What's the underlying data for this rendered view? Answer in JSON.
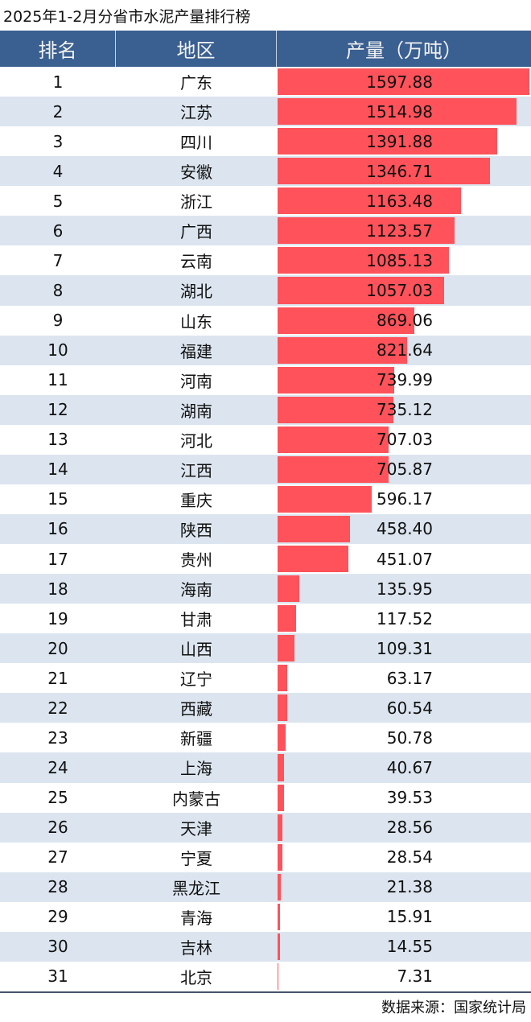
{
  "title": "2025年1-2月分省市水泥产量排行榜",
  "source": "数据来源：国家统计局",
  "colors": {
    "header": "#3a5f91",
    "bar": "#ff525a",
    "alt_row": "#dce5ef"
  },
  "chart_data": {
    "type": "table",
    "title": "2025年1-2月分省市水泥产量排行榜",
    "columns": [
      "排名",
      "地区",
      "产量（万吨）"
    ],
    "rows": [
      {
        "rank": "1",
        "region": "广东",
        "value": 1597.88
      },
      {
        "rank": "2",
        "region": "江苏",
        "value": 1514.98
      },
      {
        "rank": "3",
        "region": "四川",
        "value": 1391.88
      },
      {
        "rank": "4",
        "region": "安徽",
        "value": 1346.71
      },
      {
        "rank": "5",
        "region": "浙江",
        "value": 1163.48
      },
      {
        "rank": "6",
        "region": "广西",
        "value": 1123.57
      },
      {
        "rank": "7",
        "region": "云南",
        "value": 1085.13
      },
      {
        "rank": "8",
        "region": "湖北",
        "value": 1057.03
      },
      {
        "rank": "9",
        "region": "山东",
        "value": 869.06
      },
      {
        "rank": "10",
        "region": "福建",
        "value": 821.64
      },
      {
        "rank": "11",
        "region": "河南",
        "value": 739.99
      },
      {
        "rank": "12",
        "region": "湖南",
        "value": 735.12
      },
      {
        "rank": "13",
        "region": "河北",
        "value": 707.03
      },
      {
        "rank": "14",
        "region": "江西",
        "value": 705.87
      },
      {
        "rank": "15",
        "region": "重庆",
        "value": 596.17
      },
      {
        "rank": "16",
        "region": "陕西",
        "value": 458.4
      },
      {
        "rank": "17",
        "region": "贵州",
        "value": 451.07
      },
      {
        "rank": "18",
        "region": "海南",
        "value": 135.95
      },
      {
        "rank": "19",
        "region": "甘肃",
        "value": 117.52
      },
      {
        "rank": "20",
        "region": "山西",
        "value": 109.31
      },
      {
        "rank": "21",
        "region": "辽宁",
        "value": 63.17
      },
      {
        "rank": "22",
        "region": "西藏",
        "value": 60.54
      },
      {
        "rank": "23",
        "region": "新疆",
        "value": 50.78
      },
      {
        "rank": "24",
        "region": "上海",
        "value": 40.67
      },
      {
        "rank": "25",
        "region": "内蒙古",
        "value": 39.53
      },
      {
        "rank": "26",
        "region": "天津",
        "value": 28.56
      },
      {
        "rank": "27",
        "region": "宁夏",
        "value": 28.54
      },
      {
        "rank": "28",
        "region": "黑龙江",
        "value": 21.38
      },
      {
        "rank": "29",
        "region": "青海",
        "value": 15.91
      },
      {
        "rank": "30",
        "region": "吉林",
        "value": 14.55
      },
      {
        "rank": "31",
        "region": "北京",
        "value": 7.31
      }
    ]
  }
}
